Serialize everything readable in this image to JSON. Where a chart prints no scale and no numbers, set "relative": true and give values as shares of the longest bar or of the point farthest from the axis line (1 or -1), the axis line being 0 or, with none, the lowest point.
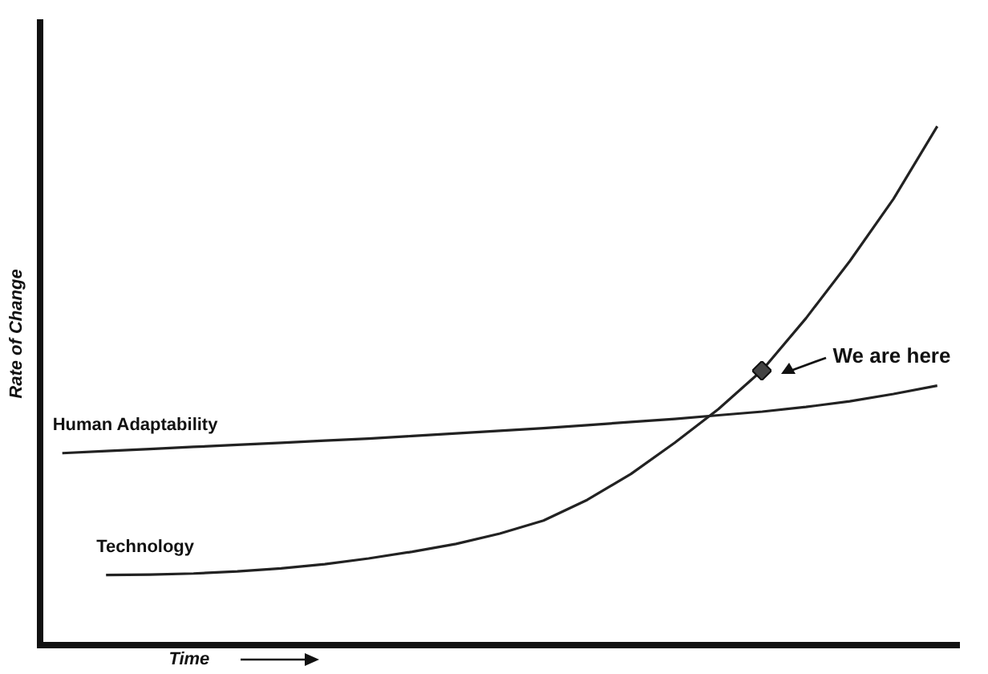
{
  "chart_data": {
    "type": "line",
    "relative": true,
    "xlabel": "Time",
    "ylabel": "Rate of Change",
    "categories": [
      null,
      null,
      null,
      null,
      null,
      null,
      null,
      null,
      null,
      null,
      null,
      null,
      null,
      null,
      null,
      null,
      null,
      null,
      null,
      null,
      null
    ],
    "series": [
      {
        "name": "Human Adaptability",
        "color": "#222222",
        "values": [
          0.37,
          0.374,
          0.378,
          0.382,
          0.386,
          0.39,
          0.394,
          0.398,
          0.403,
          0.408,
          0.413,
          0.418,
          0.424,
          0.43,
          0.436,
          0.443,
          0.45,
          0.459,
          0.47,
          0.484,
          0.5
        ]
      },
      {
        "name": "Technology",
        "color": "#222222",
        "values": [
          null,
          0.135,
          0.136,
          0.138,
          0.142,
          0.148,
          0.156,
          0.167,
          0.18,
          0.195,
          0.215,
          0.24,
          0.28,
          0.33,
          0.39,
          0.455,
          0.53,
          0.63,
          0.74,
          0.86,
          1.0
        ]
      }
    ],
    "annotations": [
      "We are here"
    ],
    "grid": false,
    "legend": false,
    "line_style": "solid",
    "marker": "none"
  }
}
